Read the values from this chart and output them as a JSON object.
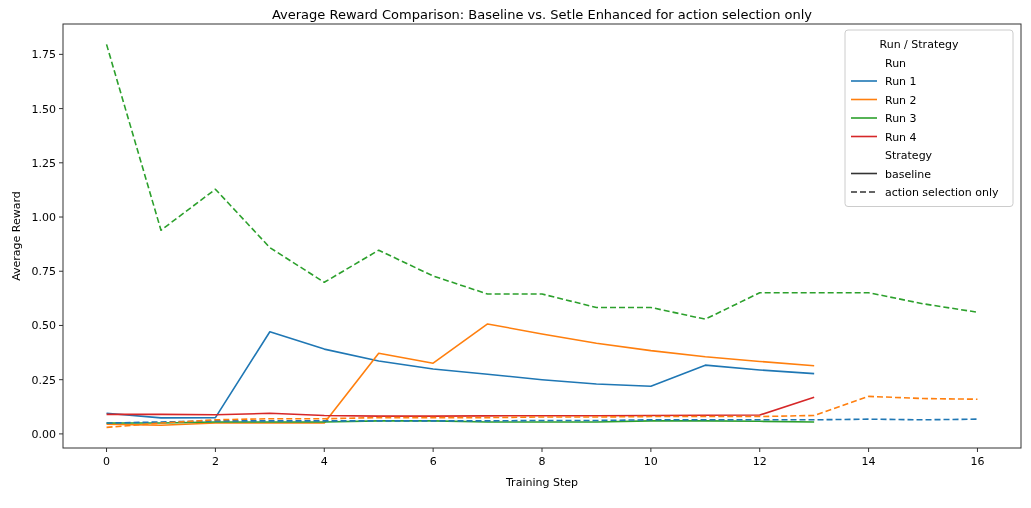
{
  "chart_data": {
    "type": "line",
    "title": "Average Reward Comparison: Baseline vs. Setle Enhanced for action selection only",
    "xlabel": "Training Step",
    "ylabel": "Average Reward",
    "legend_title": "Run / Strategy",
    "legend": "top right",
    "grid": false,
    "annotations": [
      "Run",
      "Strategy",
      "baseline",
      "action selection only"
    ],
    "xlim": [
      -0.8,
      16.8
    ],
    "xticks": [
      0,
      2,
      4,
      6,
      8,
      10,
      12,
      14,
      16
    ],
    "ylim": [
      -0.065,
      1.89
    ],
    "yticks": [
      {
        "value": 0,
        "label": "0.00"
      },
      {
        "value": 0.25,
        "label": "0.25"
      },
      {
        "value": 0.5,
        "label": "0.50"
      },
      {
        "value": 0.75,
        "label": "0.75"
      },
      {
        "value": 1,
        "label": "1.00"
      },
      {
        "value": 1.25,
        "label": "1.25"
      },
      {
        "value": 1.5,
        "label": "1.50"
      },
      {
        "value": 1.75,
        "label": "1.75"
      }
    ],
    "series": [
      {
        "name": "Run 1",
        "color": "#1f77b4",
        "line_style": "solid",
        "x": [
          0,
          1,
          2,
          3,
          4,
          5,
          6,
          7,
          8,
          9,
          10,
          11,
          12,
          13
        ],
        "values": [
          0.095,
          0.074,
          0.075,
          0.471,
          0.391,
          0.336,
          0.299,
          0.275,
          0.25,
          0.23,
          0.22,
          0.317,
          0.295,
          0.278
        ]
      },
      {
        "name": "Run 2",
        "color": "#ff7f0e",
        "line_style": "solid",
        "x": [
          0,
          1,
          2,
          3,
          4,
          5,
          6,
          7,
          8,
          9,
          10,
          11,
          12,
          13
        ],
        "values": [
          0.045,
          0.04,
          0.05,
          0.05,
          0.05,
          0.372,
          0.326,
          0.507,
          0.461,
          0.418,
          0.384,
          0.356,
          0.334,
          0.314
        ]
      },
      {
        "name": "Run 3",
        "color": "#2ca02c",
        "line_style": "solid",
        "x": [
          0,
          1,
          2,
          3,
          4,
          5,
          6,
          7,
          8,
          9,
          10,
          11,
          12,
          13
        ],
        "values": [
          0.05,
          0.05,
          0.055,
          0.055,
          0.055,
          0.06,
          0.06,
          0.055,
          0.055,
          0.055,
          0.06,
          0.06,
          0.058,
          0.055
        ]
      },
      {
        "name": "Run 4",
        "color": "#d62728",
        "line_style": "solid",
        "x": [
          0,
          1,
          2,
          3,
          4,
          5,
          6,
          7,
          8,
          9,
          10,
          11,
          12,
          13
        ],
        "values": [
          0.09,
          0.09,
          0.088,
          0.095,
          0.085,
          0.082,
          0.082,
          0.083,
          0.084,
          0.084,
          0.085,
          0.086,
          0.087,
          0.169
        ]
      },
      {
        "color": "#1f77b4",
        "line_style": "dashed",
        "x": [
          0,
          1,
          2,
          3,
          4,
          5,
          6,
          7,
          8,
          9,
          10,
          11,
          12,
          13,
          14,
          15,
          16
        ],
        "values": [
          0.05,
          0.055,
          0.06,
          0.06,
          0.06,
          0.06,
          0.06,
          0.06,
          0.062,
          0.062,
          0.065,
          0.065,
          0.065,
          0.065,
          0.068,
          0.065,
          0.068
        ]
      },
      {
        "color": "#ff7f0e",
        "line_style": "dashed",
        "x": [
          0,
          1,
          2,
          3,
          4,
          5,
          6,
          7,
          8,
          9,
          10,
          11,
          12,
          13,
          14,
          15,
          16
        ],
        "values": [
          0.03,
          0.05,
          0.065,
          0.07,
          0.07,
          0.075,
          0.075,
          0.075,
          0.078,
          0.078,
          0.08,
          0.08,
          0.08,
          0.085,
          0.173,
          0.163,
          0.16
        ]
      },
      {
        "color": "#2ca02c",
        "line_style": "dashed",
        "x": [
          0,
          1,
          2,
          3,
          4,
          5,
          6,
          7,
          8,
          9,
          10,
          11,
          12,
          13,
          14,
          15,
          16
        ],
        "values": [
          1.796,
          0.939,
          1.128,
          0.859,
          0.699,
          0.847,
          0.728,
          0.645,
          0.645,
          0.583,
          0.583,
          0.529,
          0.651,
          0.651,
          0.651,
          0.6,
          0.561
        ]
      }
    ]
  }
}
